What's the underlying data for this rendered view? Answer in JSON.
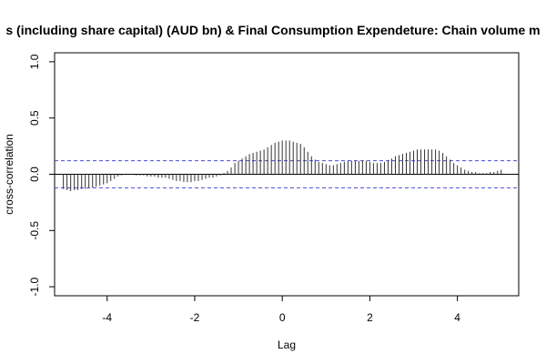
{
  "chart_data": {
    "type": "bar",
    "title": "s (including share capital) (AUD bn)  & Final Consumption Expendeture: Chain volume m",
    "xlabel": "Lag",
    "ylabel": "cross-correlation",
    "xlim": [
      -5.2,
      5.4
    ],
    "ylim": [
      -1.08,
      1.08
    ],
    "x_ticks": [
      -4,
      -2,
      0,
      2,
      4
    ],
    "y_ticks": [
      -1.0,
      -0.5,
      0.0,
      0.5,
      1.0
    ],
    "x_tick_labels": [
      "-4",
      "-2",
      "0",
      "2",
      "4"
    ],
    "y_tick_labels": [
      "-1.0",
      "-0.5",
      "0.0",
      "0.5",
      "1.0"
    ],
    "confidence_band": [
      0.12,
      -0.12
    ],
    "grid": false,
    "lag_step": 0.0833,
    "x": [
      -5,
      -4.917,
      -4.833,
      -4.75,
      -4.667,
      -4.583,
      -4.5,
      -4.417,
      -4.333,
      -4.25,
      -4.167,
      -4.083,
      -4,
      -3.917,
      -3.833,
      -3.75,
      -3.667,
      -3.583,
      -3.5,
      -3.417,
      -3.333,
      -3.25,
      -3.167,
      -3.083,
      -3,
      -2.917,
      -2.833,
      -2.75,
      -2.667,
      -2.583,
      -2.5,
      -2.417,
      -2.333,
      -2.25,
      -2.167,
      -2.083,
      -2,
      -1.917,
      -1.833,
      -1.75,
      -1.667,
      -1.583,
      -1.5,
      -1.417,
      -1.333,
      -1.25,
      -1.167,
      -1.083,
      -1,
      -0.917,
      -0.833,
      -0.75,
      -0.667,
      -0.583,
      -0.5,
      -0.417,
      -0.333,
      -0.25,
      -0.167,
      -0.083,
      0,
      0.083,
      0.167,
      0.25,
      0.333,
      0.417,
      0.5,
      0.583,
      0.667,
      0.75,
      0.833,
      0.917,
      1,
      1.083,
      1.167,
      1.25,
      1.333,
      1.417,
      1.5,
      1.583,
      1.667,
      1.75,
      1.833,
      1.917,
      2,
      2.083,
      2.167,
      2.25,
      2.333,
      2.417,
      2.5,
      2.583,
      2.667,
      2.75,
      2.833,
      2.917,
      3,
      3.083,
      3.167,
      3.25,
      3.333,
      3.417,
      3.5,
      3.583,
      3.667,
      3.75,
      3.833,
      3.917,
      4,
      4.083,
      4.167,
      4.25,
      4.333,
      4.417,
      4.5,
      4.583,
      4.667,
      4.75,
      4.833,
      4.917,
      5
    ],
    "values": [
      -0.13,
      -0.14,
      -0.15,
      -0.14,
      -0.14,
      -0.13,
      -0.13,
      -0.12,
      -0.12,
      -0.11,
      -0.1,
      -0.09,
      -0.08,
      -0.06,
      -0.04,
      -0.02,
      -0.01,
      0,
      0,
      0,
      -0.01,
      -0.01,
      -0.01,
      -0.02,
      -0.02,
      -0.02,
      -0.03,
      -0.03,
      -0.03,
      -0.04,
      -0.05,
      -0.06,
      -0.06,
      -0.07,
      -0.07,
      -0.07,
      -0.06,
      -0.06,
      -0.05,
      -0.04,
      -0.03,
      -0.03,
      -0.02,
      -0.01,
      0.01,
      0.03,
      0.06,
      0.1,
      0.12,
      0.14,
      0.16,
      0.18,
      0.19,
      0.2,
      0.21,
      0.22,
      0.24,
      0.26,
      0.28,
      0.29,
      0.3,
      0.3,
      0.3,
      0.29,
      0.28,
      0.27,
      0.24,
      0.2,
      0.16,
      0.13,
      0.11,
      0.1,
      0.09,
      0.08,
      0.08,
      0.09,
      0.1,
      0.11,
      0.12,
      0.12,
      0.12,
      0.12,
      0.12,
      0.12,
      0.11,
      0.1,
      0.1,
      0.1,
      0.11,
      0.12,
      0.14,
      0.16,
      0.17,
      0.18,
      0.19,
      0.2,
      0.21,
      0.22,
      0.22,
      0.22,
      0.22,
      0.22,
      0.22,
      0.21,
      0.19,
      0.16,
      0.13,
      0.1,
      0.08,
      0.06,
      0.04,
      0.03,
      0.02,
      0.02,
      0.01,
      0.01,
      0.01,
      0.02,
      0.02,
      0.03,
      0.04
    ]
  }
}
